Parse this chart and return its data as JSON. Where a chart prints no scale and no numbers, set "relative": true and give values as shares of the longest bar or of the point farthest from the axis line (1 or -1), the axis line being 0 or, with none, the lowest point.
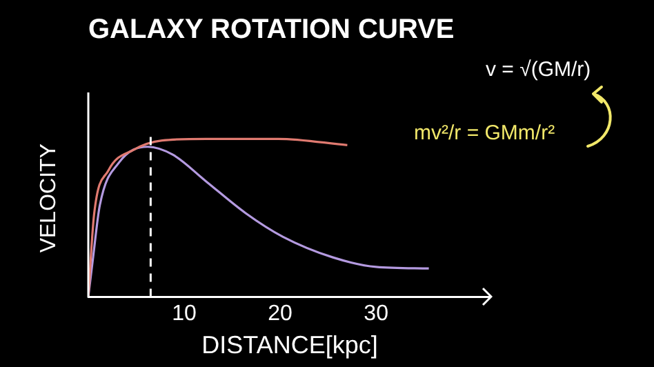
{
  "chart_data": {
    "type": "line",
    "title": "GALAXY ROTATION CURVE",
    "xlabel": "DISTANCE[kpc]",
    "ylabel": "VELOCITY",
    "relative": true,
    "xlim": [
      0,
      42
    ],
    "xticks": [
      10,
      20,
      30
    ],
    "legend": false,
    "marker": "none",
    "line_style": "solid",
    "series": [
      {
        "color": "#e07a70",
        "x": [
          0,
          0.6,
          2.1,
          4.7,
          7.7,
          12.3,
          19.8,
          27
        ],
        "values": [
          0,
          0.52,
          0.8,
          0.93,
          0.99,
          1,
          1,
          0.96
        ]
      },
      {
        "color": "#b49ae0",
        "x": [
          0,
          0.5,
          1.2,
          3.2,
          6.2,
          8.8,
          12.3,
          16.4,
          20.3,
          25.5,
          30,
          35.5
        ],
        "values": [
          0,
          0.25,
          0.58,
          0.85,
          0.95,
          0.9,
          0.73,
          0.53,
          0.38,
          0.25,
          0.19,
          0.18
        ]
      }
    ],
    "ref_lines": [
      {
        "axis": "x",
        "value": 6.5,
        "color": "#ffffff",
        "line_style": "dashed"
      }
    ],
    "annotations": [
      "v = √(GM/r)",
      "mv²/r = GMm/r²"
    ]
  }
}
